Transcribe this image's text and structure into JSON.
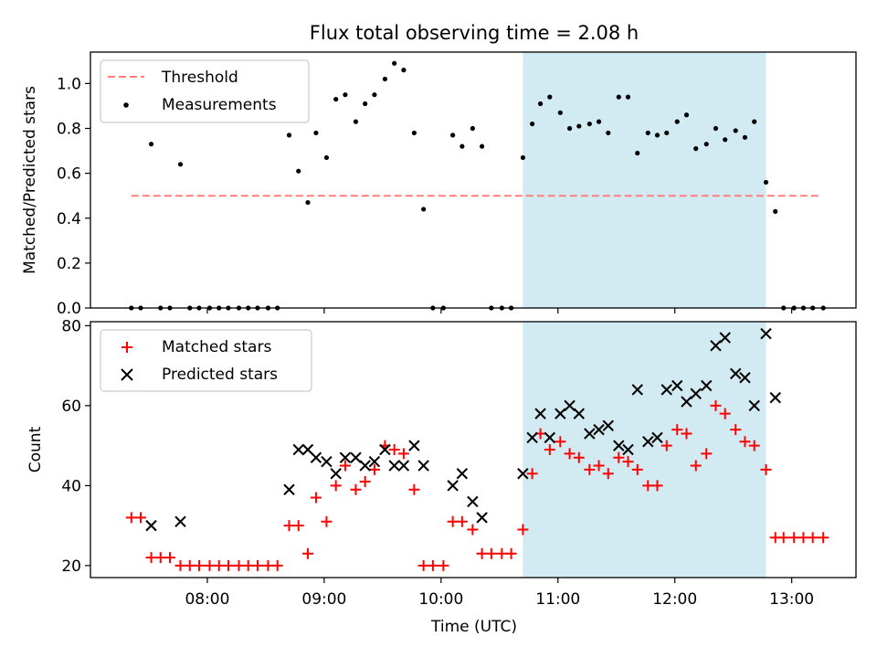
{
  "title": "Flux total observing time = 2.08 h",
  "shaded_span": {
    "start_hour": 10.7,
    "end_hour": 12.78,
    "color": "#add8e6"
  },
  "x_axis": {
    "label": "Time (UTC)",
    "ticks": [
      {
        "value": 8,
        "label": "08:00"
      },
      {
        "value": 9,
        "label": "09:00"
      },
      {
        "value": 10,
        "label": "10:00"
      },
      {
        "value": 11,
        "label": "11:00"
      },
      {
        "value": 12,
        "label": "12:00"
      },
      {
        "value": 13,
        "label": "13:00"
      }
    ],
    "xlim": [
      7.0,
      13.55
    ]
  },
  "chart_data": [
    {
      "type": "scatter",
      "ylabel": "Matched/Predicted stars",
      "ylim": [
        0,
        1.14
      ],
      "yticks": [
        "0.0",
        "0.2",
        "0.4",
        "0.6",
        "0.8",
        "1.0"
      ],
      "legend_position": "top-left",
      "threshold": {
        "name": "Threshold",
        "value": 0.5,
        "x_range": [
          7.35,
          13.25
        ],
        "color": "#ff7f7f"
      },
      "series": [
        {
          "name": "Measurements",
          "color": "#000000",
          "x": [
            7.35,
            7.43,
            7.52,
            7.6,
            7.68,
            7.77,
            7.85,
            7.93,
            8.02,
            8.1,
            8.18,
            8.27,
            8.35,
            8.43,
            8.52,
            8.6,
            8.7,
            8.78,
            8.86,
            8.93,
            9.02,
            9.1,
            9.18,
            9.27,
            9.35,
            9.43,
            9.52,
            9.6,
            9.68,
            9.77,
            9.85,
            9.93,
            10.02,
            10.1,
            10.18,
            10.27,
            10.35,
            10.43,
            10.52,
            10.6,
            10.7,
            10.78,
            10.85,
            10.93,
            11.02,
            11.1,
            11.18,
            11.27,
            11.35,
            11.43,
            11.52,
            11.6,
            11.68,
            11.77,
            11.85,
            11.93,
            12.02,
            12.1,
            12.18,
            12.27,
            12.35,
            12.43,
            12.52,
            12.6,
            12.68,
            12.78,
            12.86,
            12.93,
            13.02,
            13.1,
            13.18,
            13.27
          ],
          "y": [
            0,
            0,
            0.73,
            0,
            0,
            0.64,
            0,
            0,
            0,
            0,
            0,
            0,
            0,
            0,
            0,
            0,
            0.77,
            0.61,
            0.47,
            0.78,
            0.67,
            0.93,
            0.95,
            0.83,
            0.91,
            0.95,
            1.02,
            1.09,
            1.06,
            0.78,
            0.44,
            0,
            0,
            0.77,
            0.72,
            0.8,
            0.72,
            0,
            0,
            0,
            0.67,
            0.82,
            0.91,
            0.94,
            0.87,
            0.8,
            0.81,
            0.82,
            0.83,
            0.78,
            0.94,
            0.94,
            0.69,
            0.78,
            0.77,
            0.78,
            0.83,
            0.86,
            0.71,
            0.73,
            0.8,
            0.75,
            0.79,
            0.76,
            0.83,
            0.56,
            0.43,
            0,
            0,
            0,
            0,
            0
          ]
        }
      ]
    },
    {
      "type": "scatter",
      "ylabel": "Count",
      "ylim": [
        17,
        81
      ],
      "yticks": [
        "20",
        "40",
        "60",
        "80"
      ],
      "legend_position": "top-left",
      "series": [
        {
          "name": "Matched stars",
          "color": "#ff0000",
          "marker": "plus",
          "x": [
            7.35,
            7.43,
            7.52,
            7.6,
            7.68,
            7.77,
            7.85,
            7.93,
            8.02,
            8.1,
            8.18,
            8.27,
            8.35,
            8.43,
            8.52,
            8.6,
            8.7,
            8.78,
            8.86,
            8.93,
            9.02,
            9.1,
            9.18,
            9.27,
            9.35,
            9.43,
            9.52,
            9.6,
            9.68,
            9.77,
            9.85,
            9.93,
            10.02,
            10.1,
            10.18,
            10.27,
            10.35,
            10.43,
            10.52,
            10.6,
            10.7,
            10.78,
            10.85,
            10.93,
            11.02,
            11.1,
            11.18,
            11.27,
            11.35,
            11.43,
            11.52,
            11.6,
            11.68,
            11.77,
            11.85,
            11.93,
            12.02,
            12.1,
            12.18,
            12.27,
            12.35,
            12.43,
            12.52,
            12.6,
            12.68,
            12.78,
            12.86,
            12.93,
            13.02,
            13.1,
            13.18,
            13.27
          ],
          "y": [
            32,
            32,
            22,
            22,
            22,
            20,
            20,
            20,
            20,
            20,
            20,
            20,
            20,
            20,
            20,
            20,
            30,
            30,
            23,
            37,
            31,
            40,
            45,
            39,
            41,
            44,
            50,
            49,
            48,
            39,
            20,
            20,
            20,
            31,
            31,
            29,
            23,
            23,
            23,
            23,
            29,
            43,
            53,
            49,
            51,
            48,
            47,
            44,
            45,
            43,
            47,
            46,
            44,
            40,
            40,
            50,
            54,
            53,
            45,
            48,
            60,
            58,
            54,
            51,
            50,
            44,
            27,
            27,
            27,
            27,
            27,
            27
          ]
        },
        {
          "name": "Predicted stars",
          "color": "#000000",
          "marker": "x",
          "x": [
            7.52,
            7.77,
            8.7,
            8.78,
            8.86,
            8.93,
            9.02,
            9.1,
            9.18,
            9.27,
            9.35,
            9.43,
            9.52,
            9.6,
            9.68,
            9.77,
            9.85,
            10.1,
            10.18,
            10.27,
            10.35,
            10.7,
            10.78,
            10.85,
            10.93,
            11.02,
            11.1,
            11.18,
            11.27,
            11.35,
            11.43,
            11.52,
            11.6,
            11.68,
            11.77,
            11.85,
            11.93,
            12.02,
            12.1,
            12.18,
            12.27,
            12.35,
            12.43,
            12.52,
            12.6,
            12.68,
            12.78,
            12.86
          ],
          "y": [
            30,
            31,
            39,
            49,
            49,
            47,
            46,
            43,
            47,
            47,
            45,
            46,
            49,
            45,
            45,
            50,
            45,
            40,
            43,
            36,
            32,
            43,
            52,
            58,
            52,
            58,
            60,
            58,
            53,
            54,
            55,
            50,
            49,
            64,
            51,
            52,
            64,
            65,
            61,
            63,
            65,
            75,
            77,
            68,
            67,
            60,
            78,
            62
          ]
        }
      ]
    }
  ]
}
